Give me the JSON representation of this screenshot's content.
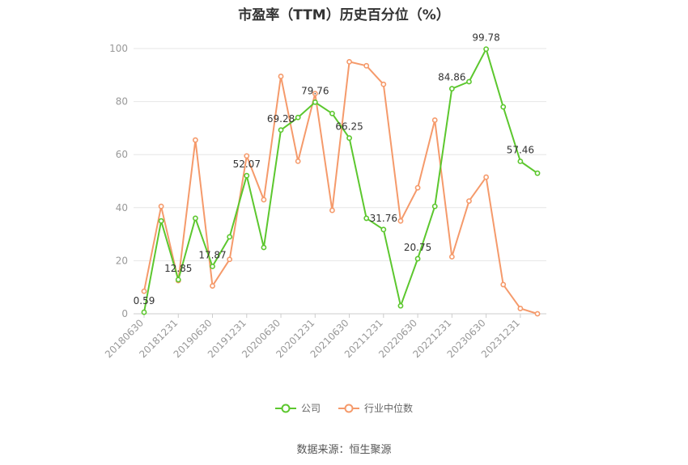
{
  "chart_data": {
    "type": "line",
    "title": "市盈率（TTM）历史百分位（%）",
    "x": [
      "20180630",
      "20180930",
      "20181231",
      "20190331",
      "20190630",
      "20190930",
      "20191231",
      "20200331",
      "20200630",
      "20200930",
      "20201231",
      "20210331",
      "20210630",
      "20210930",
      "20211231",
      "20220331",
      "20220630",
      "20220930",
      "20221231",
      "20230331",
      "20230630",
      "20230930",
      "20231231",
      "20240331"
    ],
    "x_tick_labels": [
      "20180630",
      "20181231",
      "20190630",
      "20191231",
      "20200630",
      "20201231",
      "20210630",
      "20211231",
      "20220630",
      "20221231",
      "20230630",
      "20231231"
    ],
    "ylim": [
      0,
      100
    ],
    "y_ticks": [
      0,
      20,
      40,
      60,
      80,
      100
    ],
    "grid": true,
    "legend_position": "bottom-center",
    "series": [
      {
        "name": "公司",
        "color": "#5cc72e",
        "values": [
          0.59,
          35,
          12.85,
          36,
          17.87,
          29,
          52.07,
          25,
          69.28,
          74,
          79.76,
          75.5,
          66.25,
          36,
          31.76,
          3,
          20.75,
          40.5,
          84.86,
          87.5,
          99.78,
          78,
          57.46,
          53
        ],
        "labels": {
          "0": "0.59",
          "2": "12.85",
          "4": "17.87",
          "6": "52.07",
          "8": "69.28",
          "10": "79.76",
          "12": "66.25",
          "14": "31.76",
          "16": "20.75",
          "18": "84.86",
          "20": "99.78",
          "22": "57.46"
        }
      },
      {
        "name": "行业中位数",
        "color": "#f59a6b",
        "values": [
          8.5,
          40.5,
          12.5,
          65.5,
          10.5,
          20.5,
          59.5,
          43,
          89.5,
          57.5,
          83,
          39,
          95,
          93.5,
          86.5,
          35,
          47.5,
          73,
          21.5,
          42.5,
          51.5,
          11,
          2,
          0
        ]
      }
    ]
  },
  "source_text": "数据来源：恒生聚源"
}
